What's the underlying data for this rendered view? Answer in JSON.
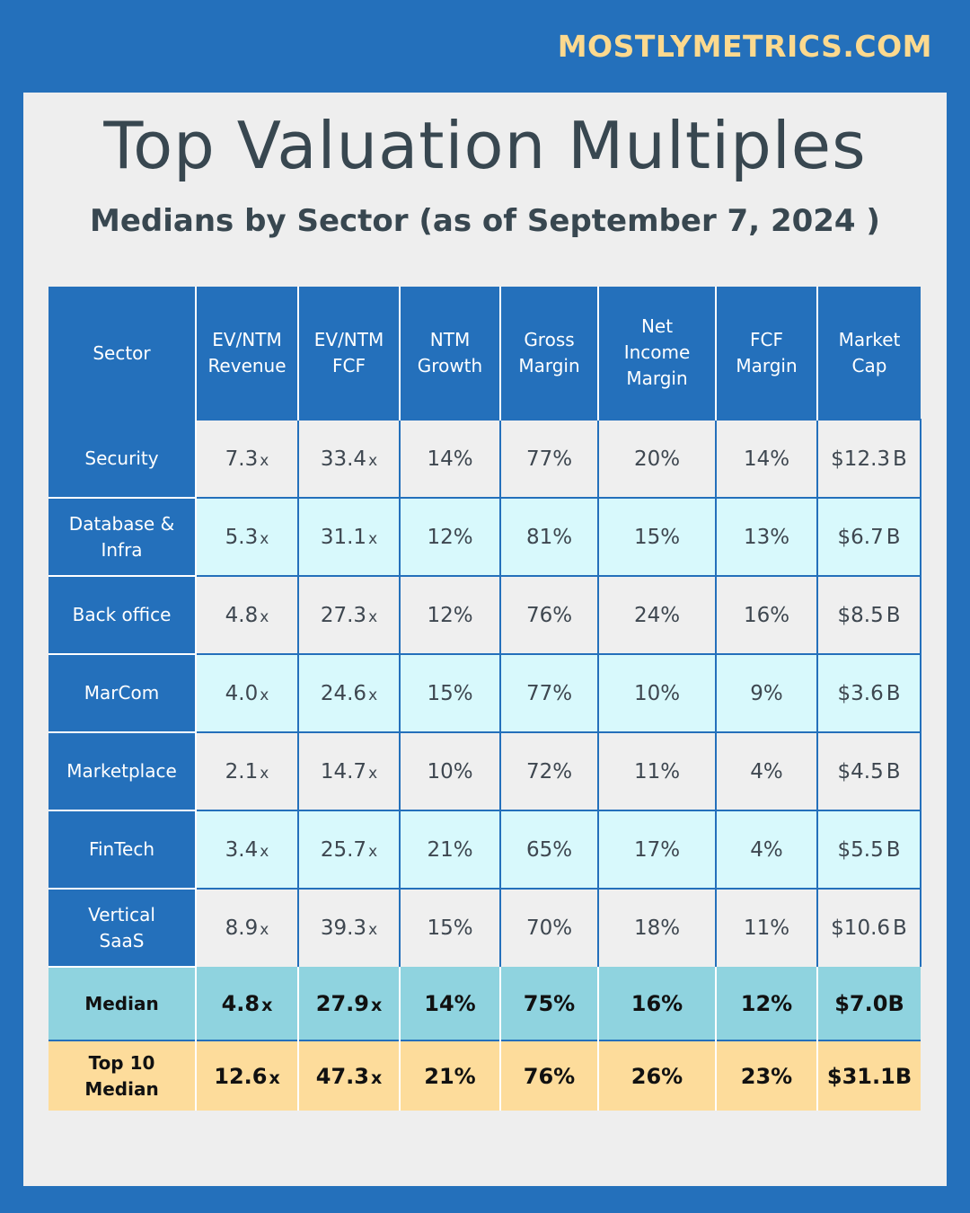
{
  "brand": "MOSTLYMETRICS.COM",
  "title": "Top Valuation Multiples",
  "subtitle": "Medians by Sector (as of September 7, 2024 )",
  "colors": {
    "background_blue": "#2470bb",
    "brand_yellow": "#fcd98e",
    "row_gray": "#efefef",
    "row_cyan": "#d8f9fc",
    "median_teal": "#8fd3df",
    "top10_yellow": "#fddc9b",
    "text_dark": "#384750"
  },
  "table": {
    "headers": [
      "Sector",
      "EV/NTM Revenue",
      "EV/NTM FCF",
      "NTM Growth",
      "Gross Margin",
      "Net Income Margin",
      "FCF Margin",
      "Market Cap"
    ],
    "header_lines": [
      [
        "Sector"
      ],
      [
        "EV/NTM",
        "Revenue"
      ],
      [
        "EV/NTM",
        "FCF"
      ],
      [
        "NTM",
        "Growth"
      ],
      [
        "Gross",
        "Margin"
      ],
      [
        "Net",
        "Income",
        "Margin"
      ],
      [
        "FCF",
        "Margin"
      ],
      [
        "Market",
        "Cap"
      ]
    ],
    "rows": [
      {
        "sector": [
          "Security"
        ],
        "ev_rev": "7.3",
        "ev_fcf": "33.4",
        "ntm_growth": "14%",
        "gross_margin": "77%",
        "net_income_margin": "20%",
        "fcf_margin": "14%",
        "market_cap": "$12.3",
        "cap_unit": "B"
      },
      {
        "sector": [
          "Database &",
          "Infra"
        ],
        "ev_rev": "5.3",
        "ev_fcf": "31.1",
        "ntm_growth": "12%",
        "gross_margin": "81%",
        "net_income_margin": "15%",
        "fcf_margin": "13%",
        "market_cap": "$6.7",
        "cap_unit": "B"
      },
      {
        "sector": [
          "Back office"
        ],
        "ev_rev": "4.8",
        "ev_fcf": "27.3",
        "ntm_growth": "12%",
        "gross_margin": "76%",
        "net_income_margin": "24%",
        "fcf_margin": "16%",
        "market_cap": "$8.5",
        "cap_unit": "B"
      },
      {
        "sector": [
          "MarCom"
        ],
        "ev_rev": "4.0",
        "ev_fcf": "24.6",
        "ntm_growth": "15%",
        "gross_margin": "77%",
        "net_income_margin": "10%",
        "fcf_margin": "9%",
        "market_cap": "$3.6",
        "cap_unit": "B"
      },
      {
        "sector": [
          "Marketplace"
        ],
        "ev_rev": "2.1",
        "ev_fcf": "14.7",
        "ntm_growth": "10%",
        "gross_margin": "72%",
        "net_income_margin": "11%",
        "fcf_margin": "4%",
        "market_cap": "$4.5",
        "cap_unit": "B"
      },
      {
        "sector": [
          "FinTech"
        ],
        "ev_rev": "3.4",
        "ev_fcf": "25.7",
        "ntm_growth": "21%",
        "gross_margin": "65%",
        "net_income_margin": "17%",
        "fcf_margin": "4%",
        "market_cap": "$5.5",
        "cap_unit": "B"
      },
      {
        "sector": [
          "Vertical",
          "SaaS"
        ],
        "ev_rev": "8.9",
        "ev_fcf": "39.3",
        "ntm_growth": "15%",
        "gross_margin": "70%",
        "net_income_margin": "18%",
        "fcf_margin": "11%",
        "market_cap": "$10.6",
        "cap_unit": "B"
      }
    ],
    "multiple_unit": "x",
    "median": {
      "label": "Median",
      "ev_rev": "4.8",
      "ev_fcf": "27.9",
      "ntm_growth": "14%",
      "gross_margin": "75%",
      "net_income_margin": "16%",
      "fcf_margin": "12%",
      "market_cap": "$7.0",
      "cap_unit": "B"
    },
    "top10_median": {
      "label_lines": [
        "Top 10",
        "Median"
      ],
      "ev_rev": "12.6",
      "ev_fcf": "47.3",
      "ntm_growth": "21%",
      "gross_margin": "76%",
      "net_income_margin": "26%",
      "fcf_margin": "23%",
      "market_cap": "$31.1",
      "cap_unit": "B"
    }
  }
}
